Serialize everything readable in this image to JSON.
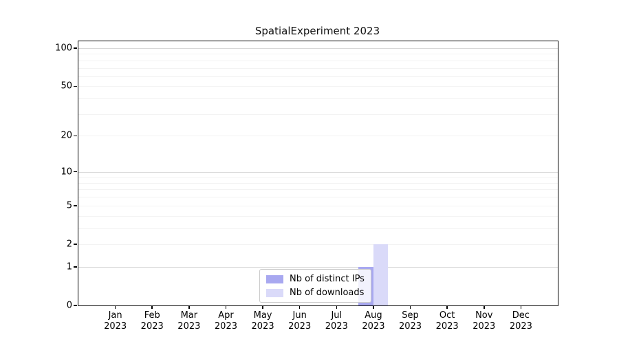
{
  "title": "SpatialExperiment 2023",
  "chart_data": {
    "type": "bar",
    "title": "SpatialExperiment 2023",
    "months": [
      "Jan",
      "Feb",
      "Mar",
      "Apr",
      "May",
      "Jun",
      "Jul",
      "Aug",
      "Sep",
      "Oct",
      "Nov",
      "Dec"
    ],
    "year": "2023",
    "x_categories": [
      "Jan 2023",
      "Feb 2023",
      "Mar 2023",
      "Apr 2023",
      "May 2023",
      "Jun 2023",
      "Jul 2023",
      "Aug 2023",
      "Sep 2023",
      "Oct 2023",
      "Nov 2023",
      "Dec 2023"
    ],
    "series": [
      {
        "name": "Nb of distinct IPs",
        "color": "#a8a8f0",
        "values": [
          0,
          0,
          0,
          0,
          0,
          0,
          0,
          1,
          0,
          0,
          0,
          0
        ]
      },
      {
        "name": "Nb of downloads",
        "color": "#dadaf9",
        "values": [
          0,
          0,
          0,
          0,
          0,
          0,
          0,
          2,
          0,
          0,
          0,
          0
        ]
      }
    ],
    "y_scale": "log1p",
    "ylim": [
      0,
      100
    ],
    "y_tick_labels": [
      0,
      1,
      2,
      5,
      10,
      20,
      50,
      100
    ],
    "y_major_gridlines": [
      1,
      10,
      100
    ],
    "y_minor_gridlines": [
      2,
      3,
      4,
      5,
      6,
      7,
      8,
      9,
      20,
      30,
      40,
      50,
      60,
      70,
      80,
      90
    ],
    "grid": "horizontal",
    "legend_position": "bottom-center",
    "colors": {
      "major_grid": "#d8d8d8",
      "minor_grid": "#f3f3f3",
      "spine": "#000000",
      "background": "#ffffff",
      "legend_border": "#cccccc"
    }
  }
}
